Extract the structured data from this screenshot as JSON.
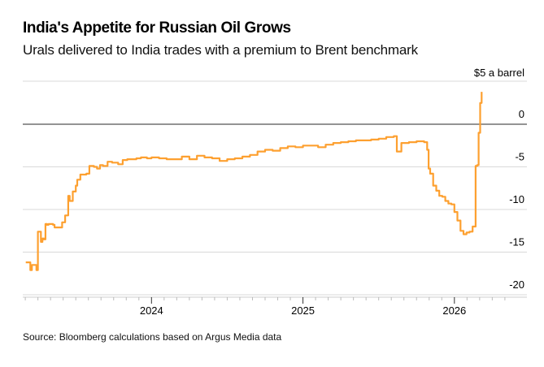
{
  "title": "India's Appetite for Russian Oil Grows",
  "subtitle": "Urals delivered to India trades with a premium to Brent benchmark",
  "unit_label": "$5 a barrel",
  "source": "Source: Bloomberg calculations based on Argus Media data",
  "colors": {
    "line": "#fda030",
    "grid": "#d9d9d9",
    "zero": "#555555"
  },
  "chart_data": {
    "type": "line",
    "title": "India's Appetite for Russian Oil Grows",
    "subtitle": "Urals delivered to India trades with a premium to Brent benchmark",
    "xlabel": "",
    "ylabel": "$5 a barrel",
    "ylim": [
      -21,
      5
    ],
    "xlim": [
      2023.15,
      2026.35
    ],
    "y_ticks": [
      0,
      -5,
      -10,
      -15,
      -20
    ],
    "y_tick_labels": [
      "0",
      "-5",
      "-10",
      "-15",
      "-20"
    ],
    "x_ticks": [
      2024,
      2025,
      2026
    ],
    "x_tick_labels": [
      "2024",
      "2025",
      "2026"
    ],
    "grid": true,
    "legend": "none",
    "series": [
      {
        "name": "Urals premium to Brent",
        "x": [
          2023.17,
          2023.2,
          2023.21,
          2023.24,
          2023.25,
          2023.27,
          2023.28,
          2023.29,
          2023.3,
          2023.31,
          2023.32,
          2023.35,
          2023.36,
          2023.4,
          2023.41,
          2023.43,
          2023.45,
          2023.46,
          2023.48,
          2023.5,
          2023.51,
          2023.53,
          2023.55,
          2023.57,
          2023.59,
          2023.62,
          2023.64,
          2023.66,
          2023.68,
          2023.71,
          2023.74,
          2023.78,
          2023.81,
          2023.84,
          2023.86,
          2023.9,
          2023.93,
          2023.97,
          2024.0,
          2024.05,
          2024.1,
          2024.15,
          2024.2,
          2024.25,
          2024.3,
          2024.35,
          2024.4,
          2024.45,
          2024.5,
          2024.55,
          2024.6,
          2024.65,
          2024.7,
          2024.75,
          2024.8,
          2024.85,
          2024.9,
          2024.95,
          2025.0,
          2025.05,
          2025.1,
          2025.15,
          2025.2,
          2025.25,
          2025.3,
          2025.35,
          2025.4,
          2025.45,
          2025.5,
          2025.55,
          2025.6,
          2025.62,
          2025.65,
          2025.7,
          2025.75,
          2025.8,
          2025.82,
          2025.83,
          2025.84,
          2025.86,
          2025.88,
          2025.9,
          2025.92,
          2025.94,
          2025.96,
          2025.98,
          2026.0,
          2026.02,
          2026.04,
          2026.06,
          2026.08,
          2026.1,
          2026.12,
          2026.14,
          2026.15,
          2026.16,
          2026.17,
          2026.18
        ],
        "y": [
          -16.2,
          -17.1,
          -16.5,
          -17.1,
          -12.6,
          -13.8,
          -13.4,
          -13.5,
          -11.7,
          -11.8,
          -11.7,
          -11.8,
          -12.1,
          -12.1,
          -11.5,
          -10.7,
          -8.4,
          -9.0,
          -7.9,
          -7.2,
          -6.5,
          -5.9,
          -5.9,
          -5.8,
          -4.9,
          -5.0,
          -5.2,
          -4.8,
          -4.9,
          -4.4,
          -4.5,
          -4.7,
          -4.2,
          -4.1,
          -4.1,
          -4.0,
          -3.9,
          -4.0,
          -3.9,
          -4.0,
          -4.1,
          -4.1,
          -3.8,
          -4.1,
          -3.7,
          -3.9,
          -4.0,
          -4.3,
          -4.1,
          -4.0,
          -3.8,
          -3.6,
          -3.2,
          -3.0,
          -3.1,
          -2.8,
          -2.6,
          -2.7,
          -2.5,
          -2.5,
          -2.7,
          -2.4,
          -2.2,
          -2.1,
          -2.0,
          -1.9,
          -1.9,
          -1.8,
          -1.7,
          -1.5,
          -1.4,
          -3.2,
          -2.2,
          -2.1,
          -2.0,
          -2.1,
          -3.0,
          -5.2,
          -5.8,
          -7.2,
          -7.8,
          -8.4,
          -8.5,
          -9.0,
          -9.3,
          -9.4,
          -10.3,
          -11.3,
          -12.5,
          -12.9,
          -12.7,
          -12.6,
          -12.0,
          -4.9,
          -4.8,
          -1.0,
          2.5,
          3.8
        ]
      }
    ]
  }
}
